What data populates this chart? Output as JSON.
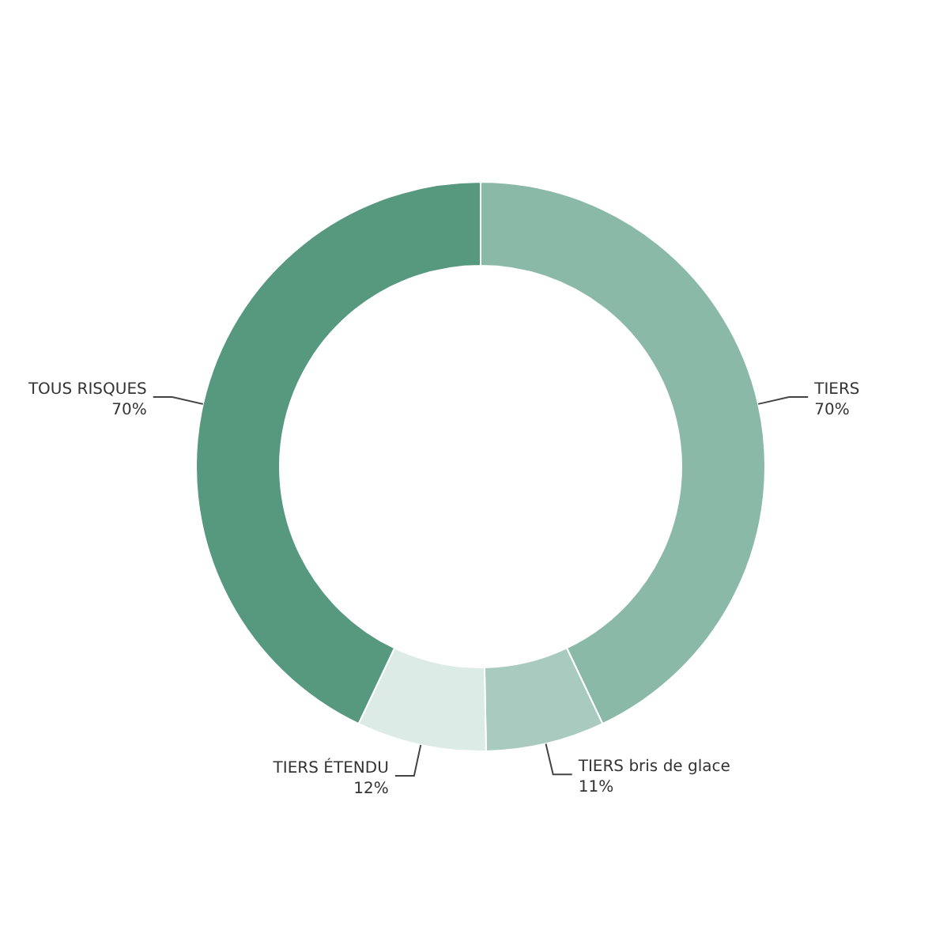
{
  "chart_data": {
    "type": "donut",
    "categories": [
      "TIERS",
      "TIERS bris de glace",
      "TIERS ÉTENDU",
      "TOUS RISQUES"
    ],
    "values": [
      70,
      11,
      12,
      70
    ],
    "value_labels": [
      "70%",
      "11%",
      "12%",
      "70%"
    ],
    "colors": [
      "#8ab9a7",
      "#a9cbbf",
      "#dcebe5",
      "#57997e"
    ],
    "legend": false
  }
}
